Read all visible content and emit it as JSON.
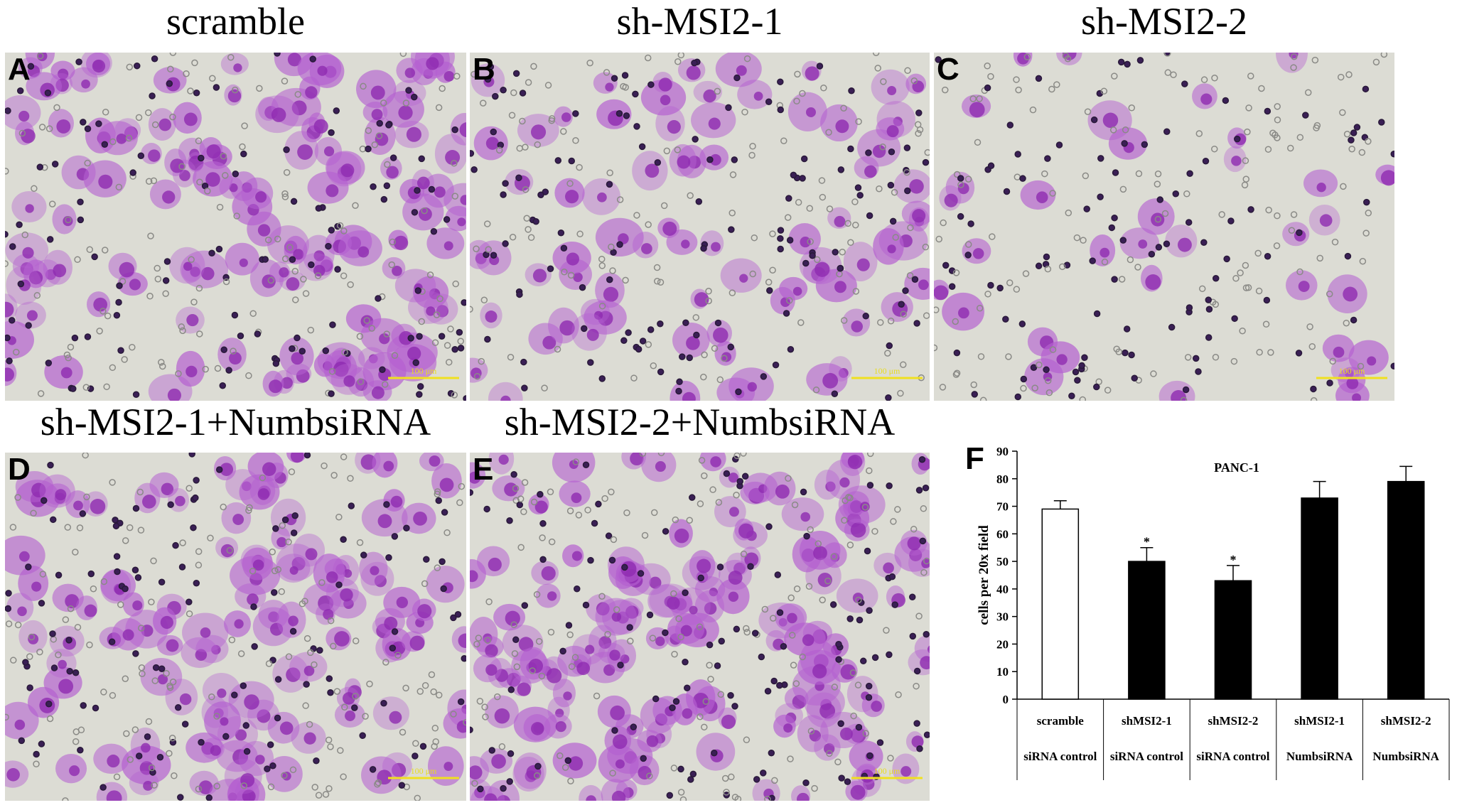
{
  "panels": [
    {
      "letter": "A",
      "title": "scramble"
    },
    {
      "letter": "B",
      "title": "sh-MSI2-1"
    },
    {
      "letter": "C",
      "title": "sh-MSI2-2"
    },
    {
      "letter": "D",
      "title": "sh-MSI2-1+NumbsiRNA"
    },
    {
      "letter": "E",
      "title": "sh-MSI2-2+NumbsiRNA"
    }
  ],
  "scale_bar": "100 μm",
  "chart_letter": "F",
  "chart_data": {
    "type": "bar",
    "title": "PANC-1",
    "y_label": "cells per 20x field",
    "categories": [
      [
        "scramble",
        "siRNA control"
      ],
      [
        "shMSI2-1",
        "siRNA control"
      ],
      [
        "shMSI2-2",
        "siRNA control"
      ],
      [
        "shMSI2-1",
        "NumbsiRNA"
      ],
      [
        "shMSI2-2",
        "NumbsiRNA"
      ]
    ],
    "values": [
      69,
      50,
      43,
      73,
      79
    ],
    "errors": [
      3,
      5,
      5.5,
      6,
      5.5
    ],
    "colors": [
      "#ffffff",
      "#000000",
      "#000000",
      "#000000",
      "#000000"
    ],
    "edgecolor": "#000000",
    "value_annotations": [
      null,
      "*",
      "*",
      null,
      null
    ],
    "ylim": [
      0,
      90
    ],
    "yticks": [
      0,
      10,
      20,
      30,
      40,
      50,
      60,
      70,
      80,
      90
    ]
  }
}
